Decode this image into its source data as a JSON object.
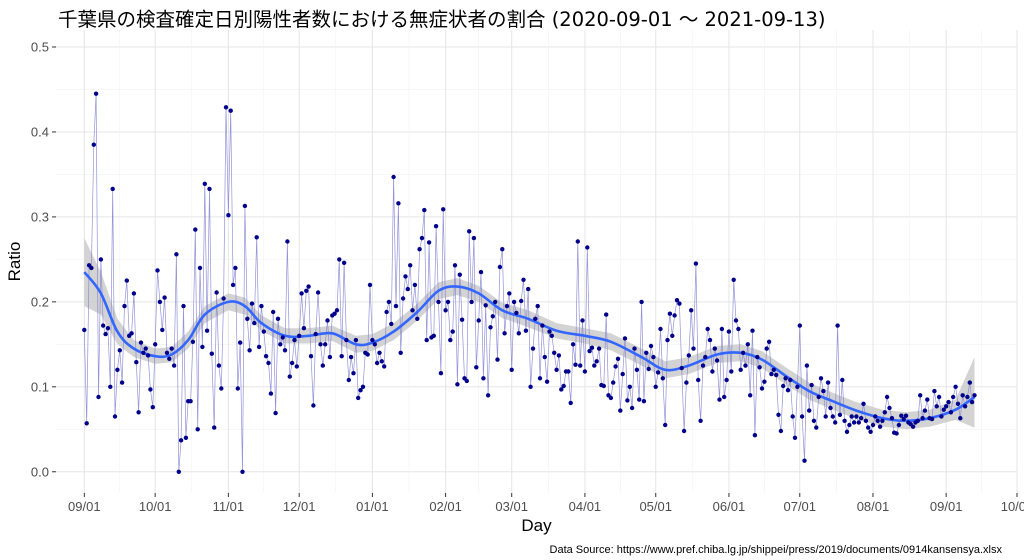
{
  "title": "千葉県の検査確定日別陽性者数における無症状者の割合 (2020-09-01 〜  2021-09-13)",
  "source": "Data Source:  https://www.pref.chiba.lg.jp/shippei/press/2019/documents/0914kansensya.xlsx",
  "colors": {
    "points": "#00008b",
    "line": "#8080d0",
    "smooth": "#3366ff",
    "band": "#c8c8c8"
  },
  "chart_data": {
    "type": "scatter",
    "xlabel": "Day",
    "ylabel": "Ratio",
    "xlim": [
      "2020-08-20",
      "2021-10-01"
    ],
    "ylim": [
      -0.025,
      0.52
    ],
    "x_ticks": [
      "09/01",
      "10/01",
      "11/01",
      "12/01",
      "01/01",
      "02/01",
      "03/01",
      "04/01",
      "05/01",
      "06/01",
      "07/01",
      "08/01",
      "09/01",
      "10/01"
    ],
    "x_tick_dates": [
      "2020-09-01",
      "2020-10-01",
      "2020-11-01",
      "2020-12-01",
      "2021-01-01",
      "2021-02-01",
      "2021-03-01",
      "2021-04-01",
      "2021-05-01",
      "2021-06-01",
      "2021-07-01",
      "2021-08-01",
      "2021-09-01",
      "2021-10-01"
    ],
    "y_ticks": [
      0.0,
      0.1,
      0.2,
      0.3,
      0.4,
      0.5
    ],
    "y_tick_labels": [
      "0.0",
      "0.1",
      "0.2",
      "0.3",
      "0.4",
      "0.5"
    ],
    "grid": true,
    "series": [
      {
        "type": "line+points",
        "x_start": "2020-09-01",
        "values": [
          0.167,
          0.057,
          0.243,
          0.24,
          0.385,
          0.445,
          0.088,
          0.25,
          0.172,
          0.162,
          0.169,
          0.1,
          0.333,
          0.065,
          0.12,
          0.143,
          0.105,
          0.195,
          0.225,
          0.16,
          0.163,
          0.21,
          0.129,
          0.07,
          0.152,
          0.14,
          0.145,
          0.137,
          0.097,
          0.076,
          0.15,
          0.237,
          0.2,
          0.167,
          0.205,
          0.14,
          0.133,
          0.145,
          0.125,
          0.256,
          0.0,
          0.037,
          0.195,
          0.04,
          0.083,
          0.083,
          0.153,
          0.285,
          0.05,
          0.24,
          0.147,
          0.339,
          0.166,
          0.333,
          0.139,
          0.052,
          0.211,
          0.125,
          0.098,
          0.204,
          0.429,
          0.302,
          0.425,
          0.22,
          0.24,
          0.098,
          0.152,
          0.0,
          0.313,
          0.18,
          0.143,
          0.198,
          0.175,
          0.276,
          0.147,
          0.195,
          0.165,
          0.136,
          0.128,
          0.092,
          0.188,
          0.069,
          0.18,
          0.15,
          0.158,
          0.143,
          0.271,
          0.112,
          0.128,
          0.155,
          0.124,
          0.16,
          0.21,
          0.169,
          0.213,
          0.218,
          0.136,
          0.078,
          0.162,
          0.211,
          0.15,
          0.125,
          0.15,
          0.178,
          0.135,
          0.184,
          0.186,
          0.19,
          0.25,
          0.136,
          0.246,
          0.155,
          0.108,
          0.135,
          0.116,
          0.155,
          0.087,
          0.096,
          0.1,
          0.14,
          0.138,
          0.22,
          0.155,
          0.15,
          0.128,
          0.14,
          0.13,
          0.124,
          0.188,
          0.2,
          0.174,
          0.347,
          0.195,
          0.316,
          0.14,
          0.204,
          0.23,
          0.215,
          0.243,
          0.19,
          0.22,
          0.18,
          0.262,
          0.275,
          0.308,
          0.155,
          0.27,
          0.158,
          0.16,
          0.289,
          0.2,
          0.116,
          0.309,
          0.19,
          0.2,
          0.155,
          0.165,
          0.243,
          0.103,
          0.232,
          0.179,
          0.11,
          0.107,
          0.283,
          0.2,
          0.275,
          0.123,
          0.178,
          0.235,
          0.11,
          0.196,
          0.09,
          0.17,
          0.183,
          0.2,
          0.132,
          0.241,
          0.262,
          0.163,
          0.195,
          0.21,
          0.12,
          0.2,
          0.187,
          0.163,
          0.201,
          0.226,
          0.166,
          0.215,
          0.1,
          0.145,
          0.18,
          0.195,
          0.11,
          0.172,
          0.135,
          0.106,
          0.165,
          0.16,
          0.14,
          0.12,
          0.137,
          0.097,
          0.101,
          0.118,
          0.118,
          0.081,
          0.15,
          0.126,
          0.271,
          0.125,
          0.178,
          0.118,
          0.264,
          0.142,
          0.146,
          0.125,
          0.13,
          0.145,
          0.102,
          0.101,
          0.185,
          0.09,
          0.087,
          0.105,
          0.124,
          0.133,
          0.072,
          0.115,
          0.157,
          0.084,
          0.1,
          0.075,
          0.145,
          0.12,
          0.085,
          0.2,
          0.083,
          0.14,
          0.121,
          0.148,
          0.135,
          0.1,
          0.117,
          0.168,
          0.11,
          0.055,
          0.155,
          0.186,
          0.16,
          0.184,
          0.202,
          0.198,
          0.122,
          0.048,
          0.105,
          0.137,
          0.19,
          0.145,
          0.245,
          0.108,
          0.06,
          0.125,
          0.135,
          0.168,
          0.155,
          0.118,
          0.145,
          0.131,
          0.085,
          0.168,
          0.088,
          0.108,
          0.165,
          0.118,
          0.226,
          0.178,
          0.168,
          0.12,
          0.14,
          0.125,
          0.15,
          0.09,
          0.166,
          0.043,
          0.135,
          0.123,
          0.098,
          0.106,
          0.145,
          0.153,
          0.115,
          0.12,
          0.114,
          0.067,
          0.048,
          0.101,
          0.11,
          0.096,
          0.108,
          0.065,
          0.04,
          0.1,
          0.172,
          0.065,
          0.013,
          0.125,
          0.072,
          0.102,
          0.06,
          0.052,
          0.088,
          0.11,
          0.095,
          0.065,
          0.105,
          0.075,
          0.065,
          0.058,
          0.172,
          0.067,
          0.108,
          0.06,
          0.047,
          0.055,
          0.065,
          0.058,
          0.065,
          0.058,
          0.063,
          0.08,
          0.06,
          0.052,
          0.047,
          0.055,
          0.065,
          0.06,
          0.053,
          0.06,
          0.07,
          0.088,
          0.075,
          0.063,
          0.046,
          0.045,
          0.055,
          0.066,
          0.062,
          0.066,
          0.058,
          0.056,
          0.053,
          0.058,
          0.06,
          0.09,
          0.063,
          0.072,
          0.085,
          0.063,
          0.062,
          0.095,
          0.077,
          0.088,
          0.065,
          0.073,
          0.077,
          0.082,
          0.07,
          0.088,
          0.1,
          0.08,
          0.063,
          0.09,
          0.077,
          0.088,
          0.105,
          0.082,
          0.09
        ]
      },
      {
        "type": "smooth",
        "x": [
          "2020-09-01",
          "2020-09-08",
          "2020-09-15",
          "2020-09-22",
          "2020-10-01",
          "2020-10-08",
          "2020-10-15",
          "2020-10-22",
          "2020-11-01",
          "2020-11-08",
          "2020-11-15",
          "2020-11-25",
          "2020-12-05",
          "2020-12-15",
          "2020-12-25",
          "2021-01-01",
          "2021-01-10",
          "2021-01-20",
          "2021-01-29",
          "2021-02-06",
          "2021-02-15",
          "2021-02-25",
          "2021-03-08",
          "2021-03-20",
          "2021-04-01",
          "2021-04-12",
          "2021-04-25",
          "2021-05-05",
          "2021-05-15",
          "2021-05-27",
          "2021-06-06",
          "2021-06-15",
          "2021-06-25",
          "2021-07-05",
          "2021-07-15",
          "2021-07-25",
          "2021-08-05",
          "2021-08-15",
          "2021-08-25",
          "2021-09-05",
          "2021-09-13"
        ],
        "values": [
          0.235,
          0.21,
          0.165,
          0.145,
          0.136,
          0.138,
          0.155,
          0.185,
          0.2,
          0.195,
          0.175,
          0.16,
          0.16,
          0.163,
          0.15,
          0.152,
          0.165,
          0.188,
          0.213,
          0.218,
          0.21,
          0.19,
          0.18,
          0.166,
          0.16,
          0.153,
          0.135,
          0.12,
          0.125,
          0.138,
          0.14,
          0.132,
          0.113,
          0.095,
          0.083,
          0.072,
          0.063,
          0.06,
          0.063,
          0.073,
          0.088
        ],
        "upper": [
          0.275,
          0.235,
          0.18,
          0.155,
          0.145,
          0.147,
          0.165,
          0.195,
          0.21,
          0.205,
          0.184,
          0.169,
          0.169,
          0.172,
          0.16,
          0.162,
          0.175,
          0.198,
          0.223,
          0.228,
          0.219,
          0.199,
          0.19,
          0.175,
          0.169,
          0.163,
          0.145,
          0.13,
          0.135,
          0.148,
          0.15,
          0.142,
          0.123,
          0.105,
          0.093,
          0.082,
          0.073,
          0.07,
          0.073,
          0.085,
          0.135
        ],
        "lower": [
          0.195,
          0.185,
          0.15,
          0.135,
          0.127,
          0.129,
          0.145,
          0.175,
          0.19,
          0.185,
          0.166,
          0.151,
          0.151,
          0.154,
          0.14,
          0.142,
          0.155,
          0.178,
          0.203,
          0.208,
          0.2,
          0.181,
          0.17,
          0.157,
          0.151,
          0.143,
          0.125,
          0.11,
          0.115,
          0.128,
          0.13,
          0.122,
          0.103,
          0.085,
          0.073,
          0.062,
          0.053,
          0.05,
          0.053,
          0.061,
          0.052
        ]
      }
    ]
  }
}
